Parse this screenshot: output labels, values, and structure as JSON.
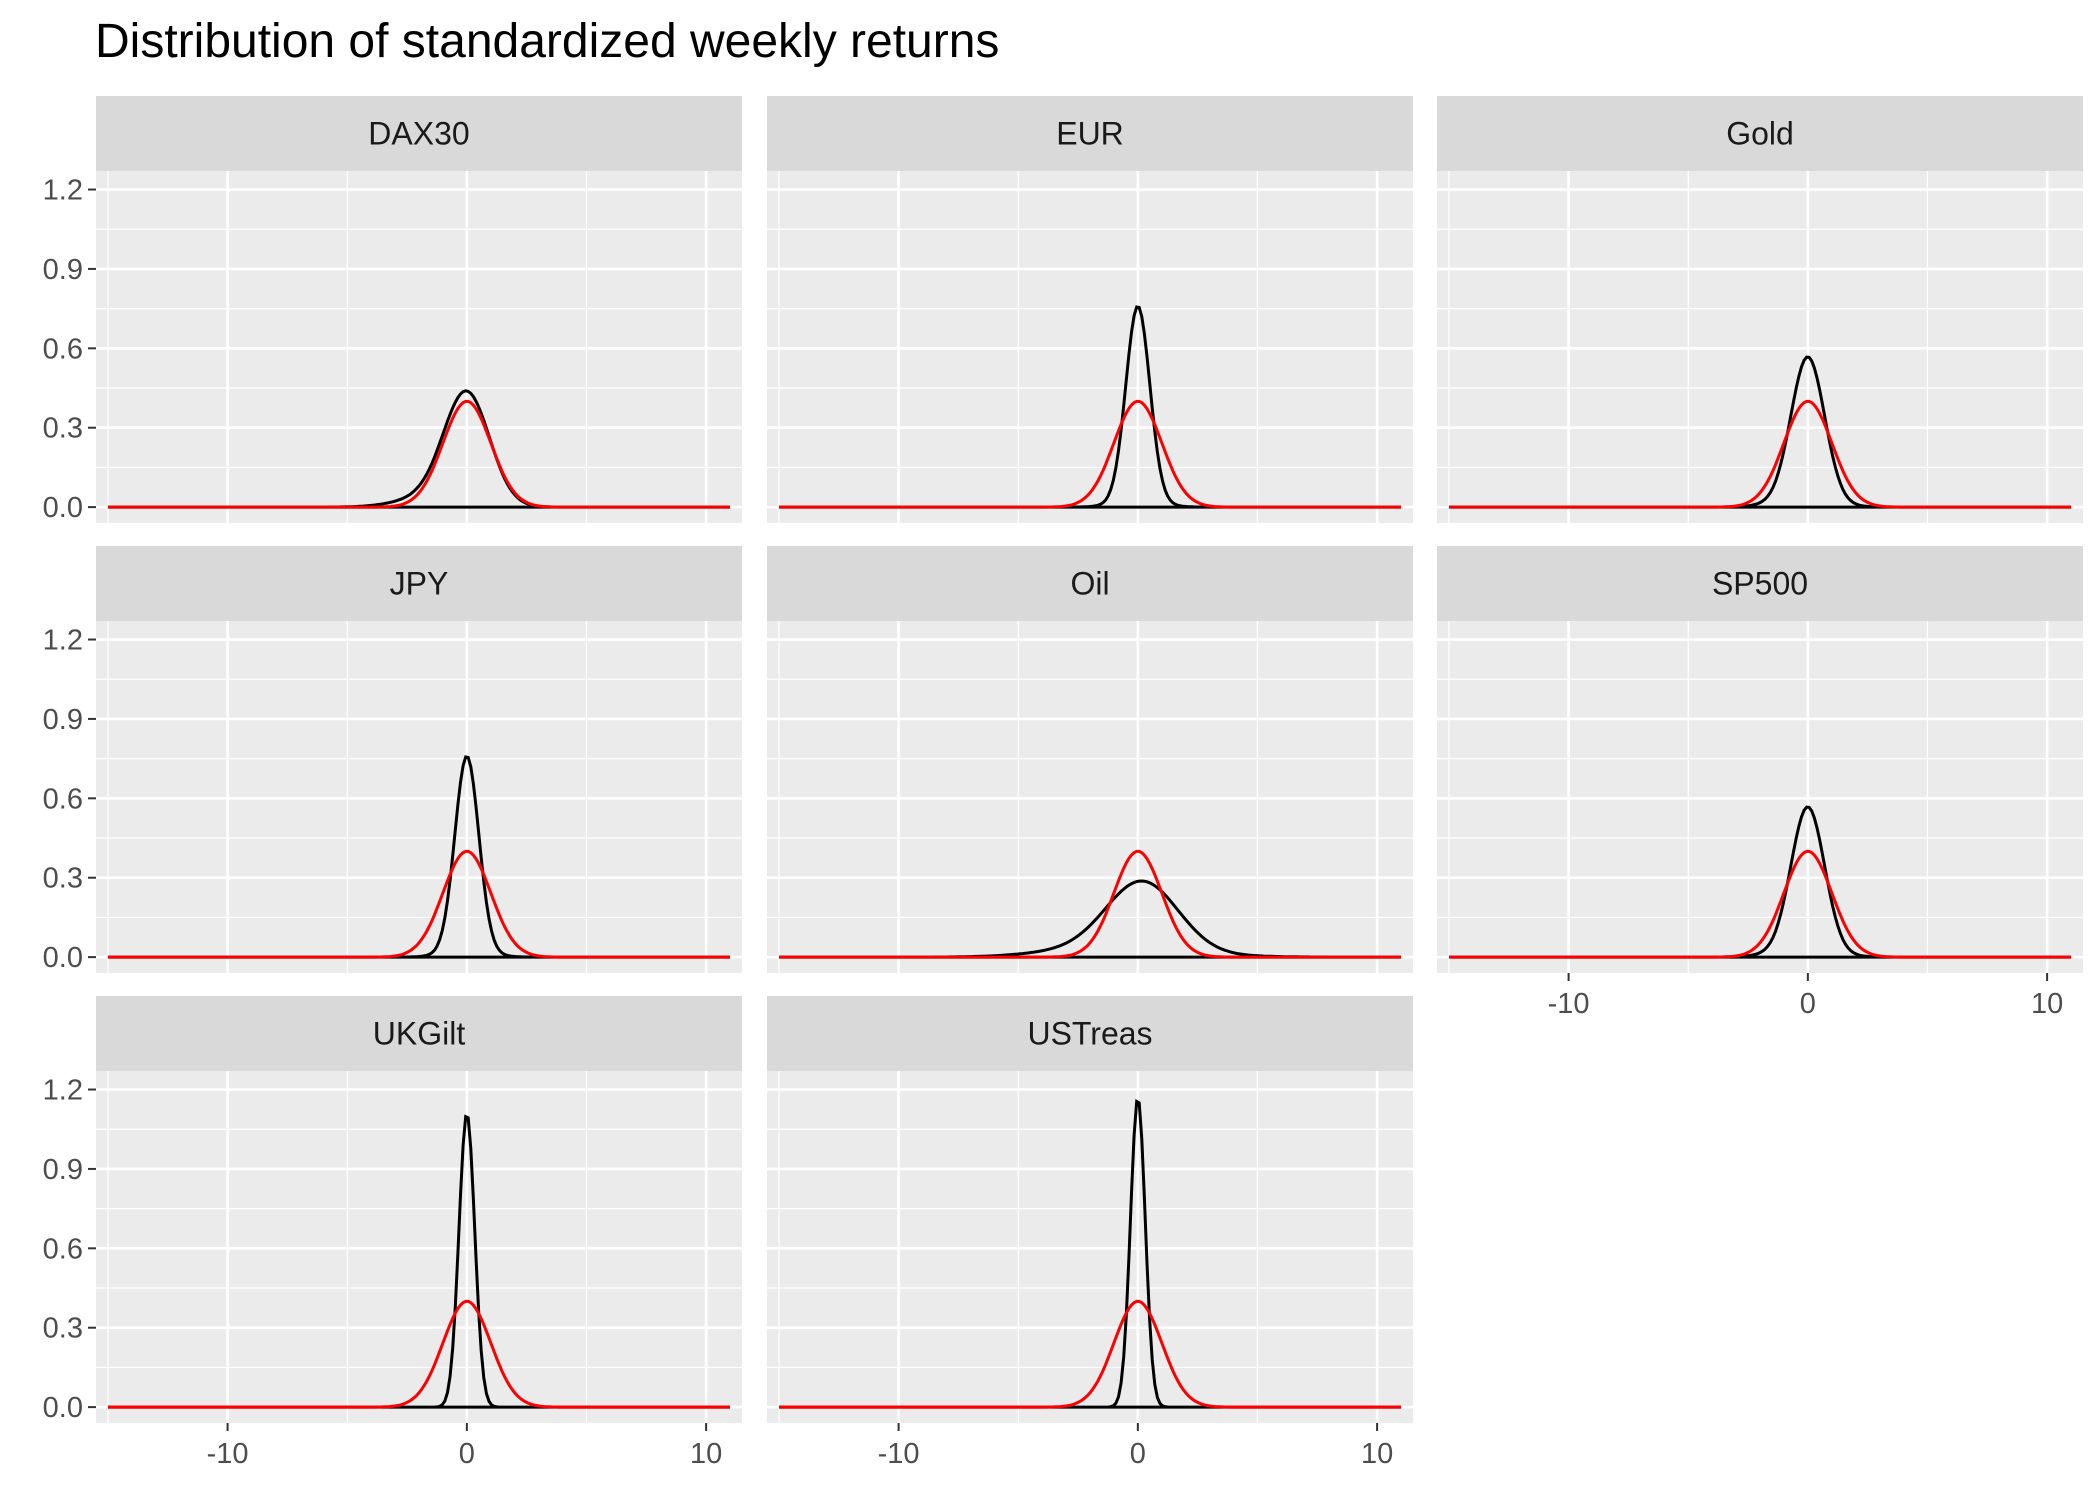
{
  "chart_data": {
    "type": "line",
    "title": "Distribution of standardized weekly returns",
    "xlabel": "",
    "ylabel": "",
    "facet_layout": "3 columns x 3 rows, shared axes",
    "xlim": [
      -15.5,
      11.5
    ],
    "ylim": [
      -0.06,
      1.27
    ],
    "x_ticks": [
      -10,
      0,
      10
    ],
    "x_tick_labels": [
      "-10",
      "0",
      "10"
    ],
    "y_ticks": [
      0.0,
      0.3,
      0.6,
      0.9,
      1.2
    ],
    "y_tick_labels": [
      "0.0",
      "0.3",
      "0.6",
      "0.9",
      "1.2"
    ],
    "grid": true,
    "panel_background": "#EBEBEB",
    "strip_background": "#D9D9D9",
    "series_colors": {
      "empirical_density": "#000000",
      "standard_normal": "#FF0000"
    },
    "x_range_plotted": [
      -15,
      11
    ],
    "reference_curve": {
      "x": 0,
      "peak_y": 0.4,
      "sd": 1
    },
    "panels": [
      {
        "label": "DAX30",
        "empirical_density": {
          "peak_x": 0.0,
          "peak_y": 0.42,
          "scale": 0.95,
          "left_tail": 0.35,
          "right_tail": 0.0
        }
      },
      {
        "label": "EUR",
        "empirical_density": {
          "peak_x": 0.0,
          "peak_y": 0.75,
          "scale": 0.5,
          "left_tail": 0.05,
          "right_tail": 0.05
        }
      },
      {
        "label": "Gold",
        "empirical_density": {
          "peak_x": 0.0,
          "peak_y": 0.56,
          "scale": 0.7,
          "left_tail": 0.08,
          "right_tail": 0.03
        }
      },
      {
        "label": "JPY",
        "empirical_density": {
          "peak_x": 0.0,
          "peak_y": 0.75,
          "scale": 0.5,
          "left_tail": 0.05,
          "right_tail": 0.05
        }
      },
      {
        "label": "Oil",
        "empirical_density": {
          "peak_x": 0.2,
          "peak_y": 0.27,
          "scale": 1.5,
          "left_tail": 0.4,
          "right_tail": 0.1
        }
      },
      {
        "label": "SP500",
        "empirical_density": {
          "peak_x": 0.0,
          "peak_y": 0.56,
          "scale": 0.7,
          "left_tail": 0.08,
          "right_tail": 0.03
        }
      },
      {
        "label": "UKGilt",
        "empirical_density": {
          "peak_x": 0.0,
          "peak_y": 1.11,
          "scale": 0.33,
          "left_tail": 0.0,
          "right_tail": 0.0
        }
      },
      {
        "label": "USTreas",
        "empirical_density": {
          "peak_x": 0.0,
          "peak_y": 1.17,
          "scale": 0.31,
          "left_tail": 0.0,
          "right_tail": 0.0
        }
      }
    ]
  }
}
